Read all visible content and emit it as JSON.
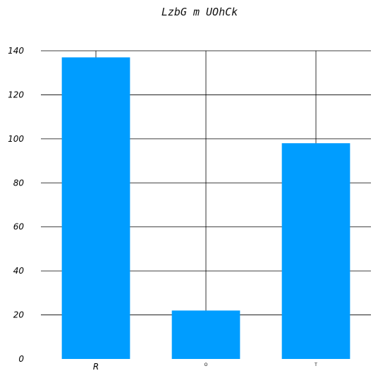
{
  "chart_data": {
    "type": "bar",
    "title": "LzbG m UOhCk",
    "categories": [
      "R",
      "O",
      "T"
    ],
    "values": [
      137,
      22,
      98
    ],
    "xlabel": "",
    "ylabel": "",
    "ylim": [
      0,
      140
    ],
    "yticks": [
      0,
      20,
      40,
      60,
      80,
      100,
      120,
      140
    ],
    "grid": true,
    "bar_color": "#009dff"
  }
}
